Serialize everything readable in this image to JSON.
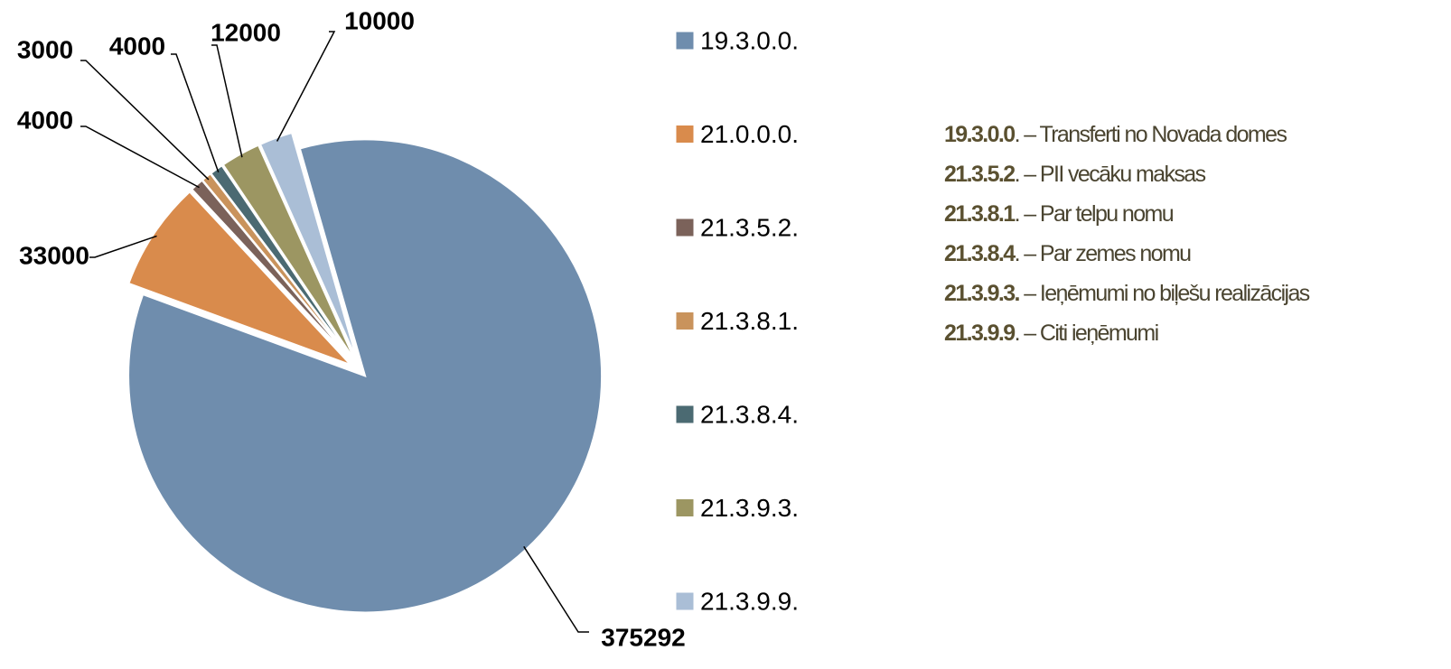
{
  "chart_data": {
    "type": "pie",
    "categories": [
      "19.3.0.0.",
      "21.0.0.0.",
      "21.3.5.2.",
      "21.3.8.1.",
      "21.3.8.4.",
      "21.3.9.3.",
      "21.3.9.9."
    ],
    "values": [
      375292,
      33000,
      4000,
      3000,
      4000,
      12000,
      10000
    ],
    "colors": [
      "#6f8dad",
      "#d98b4c",
      "#7b625a",
      "#c9935c",
      "#4b6a72",
      "#9c9662",
      "#aabed6"
    ]
  },
  "notes": [
    {
      "code": "19.3.0.0",
      "text": ". – Transferti no Novada domes"
    },
    {
      "code": "21.3.5.2",
      "text": ". – PII vecāku maksas"
    },
    {
      "code": "21.3.8.1",
      "text": ". – Par  telpu nomu"
    },
    {
      "code": "21.3.8.4",
      "text": ". – Par  zemes nomu"
    },
    {
      "code": "21.3.9.3.",
      "text": " – Ieņēmumi no biļešu realizācijas"
    },
    {
      "code": "21.3.9.9",
      "text": ". – Citi ieņēmumi"
    }
  ]
}
